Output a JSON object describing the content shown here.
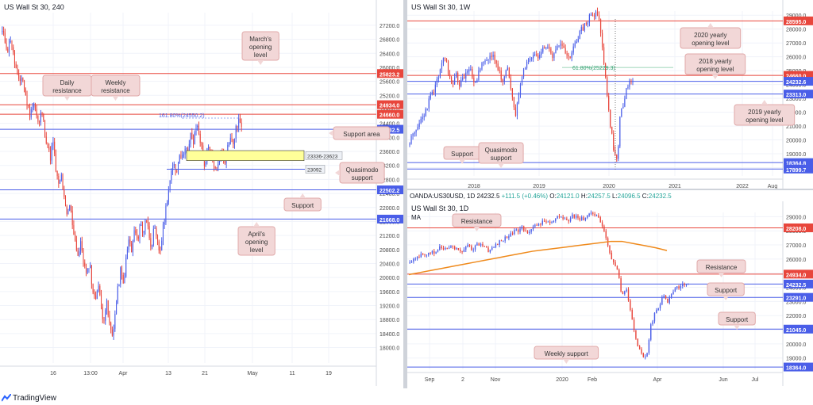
{
  "brand": "TradingView",
  "colors": {
    "candle_up": "#4a5ee8",
    "candle_down": "#e8463c",
    "red_level": "#e8463c",
    "blue_level": "#4a5ee8",
    "zone_fill": "#ffff99",
    "callout_fill": "#f2d7d7",
    "callout_border": "#e0a9a9",
    "ma_line": "#ef8a1c",
    "axis_text": "#4a4a4a"
  },
  "chart_data": [
    {
      "type": "candlestick",
      "title": "US Wall St 30, 240",
      "yticks": [
        18000,
        18400,
        18800,
        19200,
        19600,
        20000,
        20400,
        20800,
        21200,
        21600,
        22000,
        22400,
        22800,
        23200,
        23600,
        24000,
        24400,
        24800,
        25200,
        25600,
        26000,
        26400,
        26800,
        27200
      ],
      "ytick_labels": [
        "18000.0",
        "18400.0",
        "18800.0",
        "19200.0",
        "19600.0",
        "20000.0",
        "20400.0",
        "20800.0",
        "21200.0",
        "21600.0",
        "22000.0",
        "22400.0",
        "22800.0",
        "23200.0",
        "23600.0",
        "24000.0",
        "24400.0",
        "24800.0",
        "25200.0",
        "25600.0",
        "26000.0",
        "26400.0",
        "26800.0",
        "27200.0"
      ],
      "ylim": [
        17560,
        27560
      ],
      "xticks": [
        "16",
        "13:00",
        "Apr",
        "13",
        "21",
        "May",
        "11",
        "19"
      ],
      "close_path": [
        27000,
        26750,
        26500,
        26850,
        26300,
        25900,
        25500,
        25800,
        25300,
        24900,
        24600,
        25100,
        24700,
        24300,
        24800,
        24200,
        23800,
        23400,
        23900,
        23100,
        22600,
        22900,
        22200,
        21700,
        22100,
        21500,
        21000,
        20600,
        21000,
        20400,
        20000,
        20500,
        19700,
        19300,
        19900,
        19200,
        18800,
        19300,
        18700,
        18300,
        18900,
        19600,
        20200,
        19800,
        20500,
        21100,
        20700,
        21400,
        21000,
        21600,
        21200,
        21800,
        21300,
        20900,
        21400,
        21000,
        20700,
        21300,
        21900,
        22500,
        22900,
        23300,
        23000,
        23600,
        23400,
        23800,
        23500,
        24100,
        23800,
        24400,
        24100,
        23600,
        23200,
        23700,
        23500,
        23300,
        23000,
        23400,
        23600,
        23300,
        23700,
        24000,
        23800,
        24200,
        24500,
        24300
      ],
      "levels": [
        {
          "value": 25823.2,
          "label": "25823.2",
          "color": "#e8463c"
        },
        {
          "value": 24934.0,
          "label": "24934.0",
          "color": "#e8463c"
        },
        {
          "value": 24660.0,
          "label": "24660.0",
          "color": "#e8463c"
        },
        {
          "value": 24232.5,
          "label": "24232.5",
          "color": "#4a5ee8"
        },
        {
          "value": 22502.2,
          "label": "22502.2",
          "color": "#4a5ee8"
        },
        {
          "value": 21668.0,
          "label": "21668.0",
          "color": "#4a5ee8"
        }
      ],
      "zone": {
        "low": 23336,
        "high": 23623,
        "label": "23336-23623"
      },
      "quasimodo": {
        "value": 23092,
        "label": "23092"
      },
      "fib_label": "161.80%(24550.2)",
      "annotations": [
        "March's opening level",
        "Daily resistance",
        "Weekly resistance",
        "Support area",
        "Quasimodo support",
        "Support",
        "April's opening level"
      ]
    },
    {
      "type": "candlestick",
      "title": "US Wall St 30, 1W",
      "yticks": [
        18000,
        19000,
        20000,
        21000,
        22000,
        23000,
        24000,
        25000,
        26000,
        27000,
        28000,
        29000
      ],
      "ytick_labels": [
        "18000.0",
        "19000.0",
        "20000.0",
        "21000.0",
        "22000.0",
        "23000.0",
        "24000.0",
        "25000.0",
        "26000.0",
        "27000.0",
        "28000.0",
        "29000.0"
      ],
      "ylim": [
        17400,
        29300
      ],
      "xticks": [
        "2018",
        "2019",
        "2020",
        "2021",
        "2022",
        "Aug"
      ],
      "close_path": [
        19900,
        20200,
        20500,
        20900,
        21300,
        21700,
        22100,
        22600,
        23100,
        23500,
        23900,
        24500,
        25100,
        25700,
        26100,
        24600,
        24100,
        24300,
        24700,
        23900,
        24300,
        24600,
        24900,
        25100,
        24700,
        24300,
        24500,
        25000,
        25400,
        25700,
        25600,
        26000,
        26300,
        25700,
        25200,
        24600,
        24100,
        24800,
        25100,
        23600,
        22700,
        21800,
        23200,
        24300,
        24900,
        25400,
        25800,
        26100,
        26300,
        25900,
        26200,
        26500,
        26700,
        26900,
        26300,
        25900,
        26500,
        26800,
        27000,
        26500,
        26200,
        25700,
        26200,
        26700,
        27200,
        27500,
        27900,
        28100,
        28500,
        28700,
        29200,
        28900,
        29300,
        28600,
        27100,
        25300,
        23500,
        21500,
        20200,
        18900,
        18300,
        21600,
        22400,
        23200,
        23900,
        24100,
        24232
      ],
      "levels": [
        {
          "value": 28595.0,
          "label": "28595.0",
          "color": "#e8463c"
        },
        {
          "value": 24660.0,
          "label": "24660.0",
          "color": "#e8463c"
        },
        {
          "value": 24232.6,
          "label": "24232.6",
          "color": "#4a5ee8"
        },
        {
          "value": 23313.0,
          "label": "23313.0",
          "color": "#4a5ee8"
        },
        {
          "value": 18364.8,
          "label": "18364.8",
          "color": "#4a5ee8"
        },
        {
          "value": 17899.7,
          "label": "17899.7",
          "color": "#4a5ee8"
        }
      ],
      "fib_label": "61.80%(25229.3)",
      "fib_value": 25229.3,
      "annotations": [
        "2020 yearly opening level",
        "2018 yearly opening level",
        "2019 yearly opening level",
        "Support",
        "Quasimodo support"
      ]
    },
    {
      "type": "candlestick",
      "title": "US Wall St 30, 1D",
      "header": {
        "symbol": "OANDA:US30USD, 1D",
        "last": "24232.5",
        "change": "+111.5 (+0.46%)",
        "open": "24121.0",
        "high": "24257.5",
        "low": "24096.5",
        "close": "24232.5"
      },
      "legend": [
        "MA"
      ],
      "yticks": [
        19000,
        20000,
        21000,
        22000,
        23000,
        24000,
        25000,
        26000,
        27000,
        28000,
        29000
      ],
      "ytick_labels": [
        "19000.0",
        "20000.0",
        "21000.0",
        "22000.0",
        "23000.0",
        "24000.0",
        "25000.0",
        "26000.0",
        "27000.0",
        "28000.0",
        "29000.0"
      ],
      "ylim": [
        18200,
        29300
      ],
      "xticks": [
        "Sep",
        "2",
        "Nov",
        "2020",
        "Feb",
        "Apr",
        "Jun",
        "Jul"
      ],
      "close_path": [
        25700,
        25900,
        26100,
        26300,
        26200,
        26500,
        26400,
        26800,
        26600,
        26700,
        26900,
        26800,
        26500,
        26600,
        26900,
        26700,
        27000,
        27100,
        26900,
        26600,
        26800,
        27100,
        27300,
        27500,
        27700,
        27900,
        28000,
        28200,
        27900,
        28100,
        28300,
        28500,
        28600,
        28700,
        28500,
        28800,
        29000,
        28900,
        28700,
        29000,
        29100,
        28800,
        28900,
        29200,
        29300,
        29100,
        28600,
        27800,
        26400,
        25900,
        25200,
        23500,
        24000,
        22500,
        20800,
        19700,
        19200,
        19000,
        21300,
        22200,
        22600,
        23500,
        22900,
        23600,
        24100,
        24000,
        24300,
        24232
      ],
      "ma_path": [
        24900,
        25050,
        25200,
        25350,
        25500,
        25650,
        25800,
        25950,
        26100,
        26250,
        26400,
        26550,
        26650,
        26750,
        26850,
        26950,
        27050,
        27150,
        27250,
        27250,
        27100,
        26950,
        26800,
        26600
      ],
      "levels": [
        {
          "value": 28208.0,
          "label": "28208.0",
          "color": "#e8463c"
        },
        {
          "value": 24934.0,
          "label": "24934.0",
          "color": "#e8463c"
        },
        {
          "value": 24232.5,
          "label": "24232.5",
          "color": "#4a5ee8"
        },
        {
          "value": 23291.0,
          "label": "23291.0",
          "color": "#4a5ee8"
        },
        {
          "value": 21045.0,
          "label": "21045.0",
          "color": "#4a5ee8"
        },
        {
          "value": 18364.0,
          "label": "18364.0",
          "color": "#4a5ee8"
        }
      ],
      "annotations": [
        "Resistance",
        "Resistance",
        "Support",
        "Support",
        "Weekly support"
      ]
    }
  ]
}
